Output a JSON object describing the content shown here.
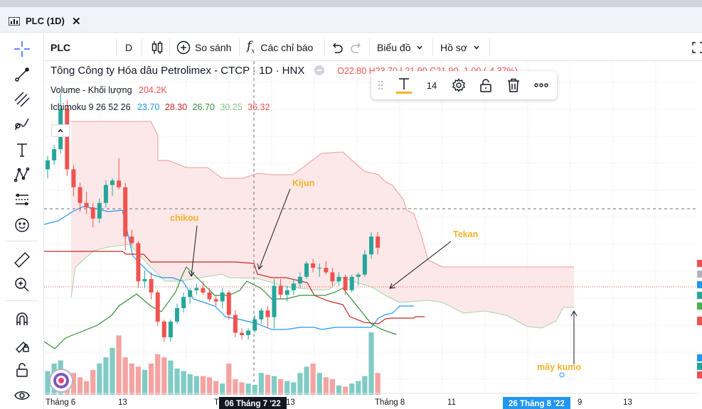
{
  "tab": {
    "title": "PLC (1D)",
    "close": "✕"
  },
  "toolbar": {
    "symbol": "PLC",
    "interval": "D",
    "compare": "So sánh",
    "indicators": "Các chỉ báo",
    "chart_menu": "Biểu đồ",
    "profile_menu": "Hồ sơ"
  },
  "legend": {
    "title": "Tông Công ty Hóa dâu Petrolimex - CTCP · 1D · HNX",
    "ohlc": "O22.80 H23.70 L21.90 C21.90 -1.00 (-4.37%)",
    "volume_label": "Volume - Khối lượng",
    "volume_value": "204.2K",
    "ichimoku_label": "Ichimoku 9 26 52 26",
    "ichimoku_values": [
      "23.70",
      "28.30",
      "26.70",
      "30.25",
      "36.32"
    ],
    "ichimoku_colors": [
      "#2196f3",
      "#c62828",
      "#388e3c",
      "#81c784",
      "#ef5350"
    ]
  },
  "floating_toolbar": {
    "font_size": "14"
  },
  "annotations": {
    "chikou": "chikou",
    "kijun": "Kijun",
    "tekan": "Tekan",
    "kumo": "mây kumo"
  },
  "xaxis": {
    "ticks": [
      "Tháng 6",
      "13",
      "T",
      "13",
      "Tháng 8",
      "11",
      "9",
      "13"
    ],
    "crosshair_date": "06 Tháng 7 '22",
    "highlight_date": "26 Tháng 8 '22"
  },
  "colors": {
    "up": "#26a69a",
    "down": "#ef5350",
    "annotation": "#f0b429",
    "kumo_fill": "#fce4e4",
    "highlight": "#2196f3"
  },
  "chart_data": {
    "type": "candlestick",
    "series": [
      {
        "name": "Volume - Khối lượng"
      },
      {
        "name": "Ichimoku 9 26 52 26"
      }
    ],
    "candles": [
      [
        22.8,
        23.4,
        22.4,
        23.2
      ],
      [
        23.2,
        23.9,
        23.0,
        23.7
      ],
      [
        23.7,
        26.2,
        23.5,
        25.5
      ],
      [
        25.5,
        25.9,
        22.5,
        22.8
      ],
      [
        22.8,
        23.0,
        21.6,
        22.0
      ],
      [
        22.0,
        22.2,
        20.9,
        21.3
      ],
      [
        21.3,
        21.8,
        20.8,
        21.1
      ],
      [
        21.1,
        21.3,
        20.2,
        20.6
      ],
      [
        20.6,
        21.5,
        20.4,
        21.3
      ],
      [
        21.3,
        22.3,
        21.1,
        22.1
      ],
      [
        22.1,
        22.4,
        21.6,
        22.3
      ],
      [
        22.3,
        23.3,
        21.9,
        22.0
      ],
      [
        22.0,
        22.2,
        19.2,
        19.8
      ],
      [
        19.8,
        20.1,
        19.4,
        19.5
      ],
      [
        19.5,
        19.6,
        17.5,
        17.8
      ],
      [
        17.8,
        18.3,
        17.5,
        17.9
      ],
      [
        17.9,
        18.2,
        17.0,
        17.3
      ],
      [
        17.3,
        17.4,
        15.8,
        16.0
      ],
      [
        16.0,
        16.1,
        15.1,
        15.3
      ],
      [
        15.3,
        16.1,
        15.1,
        16.0
      ],
      [
        16.0,
        16.8,
        15.9,
        16.6
      ],
      [
        16.6,
        17.3,
        16.4,
        17.1
      ],
      [
        17.1,
        17.5,
        16.8,
        17.4
      ],
      [
        17.4,
        17.7,
        17.2,
        17.5
      ],
      [
        17.5,
        17.8,
        17.2,
        17.3
      ],
      [
        17.3,
        17.5,
        16.9,
        17.0
      ],
      [
        17.0,
        17.2,
        16.7,
        16.9
      ],
      [
        16.9,
        17.5,
        16.6,
        17.3
      ],
      [
        17.3,
        17.4,
        16.1,
        16.3
      ],
      [
        16.3,
        16.5,
        15.3,
        15.5
      ],
      [
        15.5,
        15.7,
        15.2,
        15.4
      ],
      [
        15.4,
        15.7,
        15.2,
        15.6
      ],
      [
        15.6,
        16.3,
        15.5,
        16.1
      ],
      [
        16.1,
        16.6,
        15.9,
        16.5
      ],
      [
        16.5,
        16.7,
        15.7,
        16.2
      ],
      [
        16.2,
        17.9,
        15.7,
        17.6
      ],
      [
        17.6,
        17.9,
        17.0,
        17.2
      ],
      [
        17.2,
        17.6,
        16.9,
        17.4
      ],
      [
        17.4,
        17.9,
        17.2,
        17.7
      ],
      [
        17.7,
        18.2,
        17.5,
        18.0
      ],
      [
        18.0,
        18.7,
        17.9,
        18.6
      ],
      [
        18.6,
        18.8,
        18.2,
        18.4
      ],
      [
        18.4,
        18.6,
        18.0,
        18.4
      ],
      [
        18.4,
        18.7,
        18.1,
        18.2
      ],
      [
        18.2,
        18.4,
        17.6,
        17.8
      ],
      [
        17.8,
        18.2,
        17.6,
        18.0
      ],
      [
        18.0,
        18.1,
        17.2,
        17.4
      ],
      [
        17.4,
        18.1,
        17.3,
        18.0
      ],
      [
        18.0,
        18.2,
        17.6,
        18.1
      ],
      [
        18.1,
        19.2,
        18.0,
        19.0
      ],
      [
        19.0,
        20.0,
        18.8,
        19.8
      ],
      [
        19.8,
        20.0,
        19.0,
        19.3
      ]
    ],
    "volume_rel": [
      0.38,
      0.5,
      0.55,
      0.3,
      0.35,
      0.28,
      0.22,
      0.4,
      0.5,
      0.6,
      0.75,
      0.95,
      0.6,
      0.5,
      0.45,
      0.4,
      0.5,
      0.65,
      0.6,
      0.55,
      0.42,
      0.38,
      0.33,
      0.3,
      0.3,
      0.28,
      0.22,
      0.18,
      0.5,
      0.25,
      0.2,
      0.18,
      0.16,
      0.35,
      0.32,
      0.3,
      0.25,
      0.22,
      0.2,
      0.35,
      0.45,
      0.5,
      0.35,
      0.28,
      0.25,
      0.15,
      0.13,
      0.18,
      0.22,
      0.3,
      1.0,
      0.35
    ],
    "ylim": [
      14,
      27
    ],
    "grid": true
  }
}
